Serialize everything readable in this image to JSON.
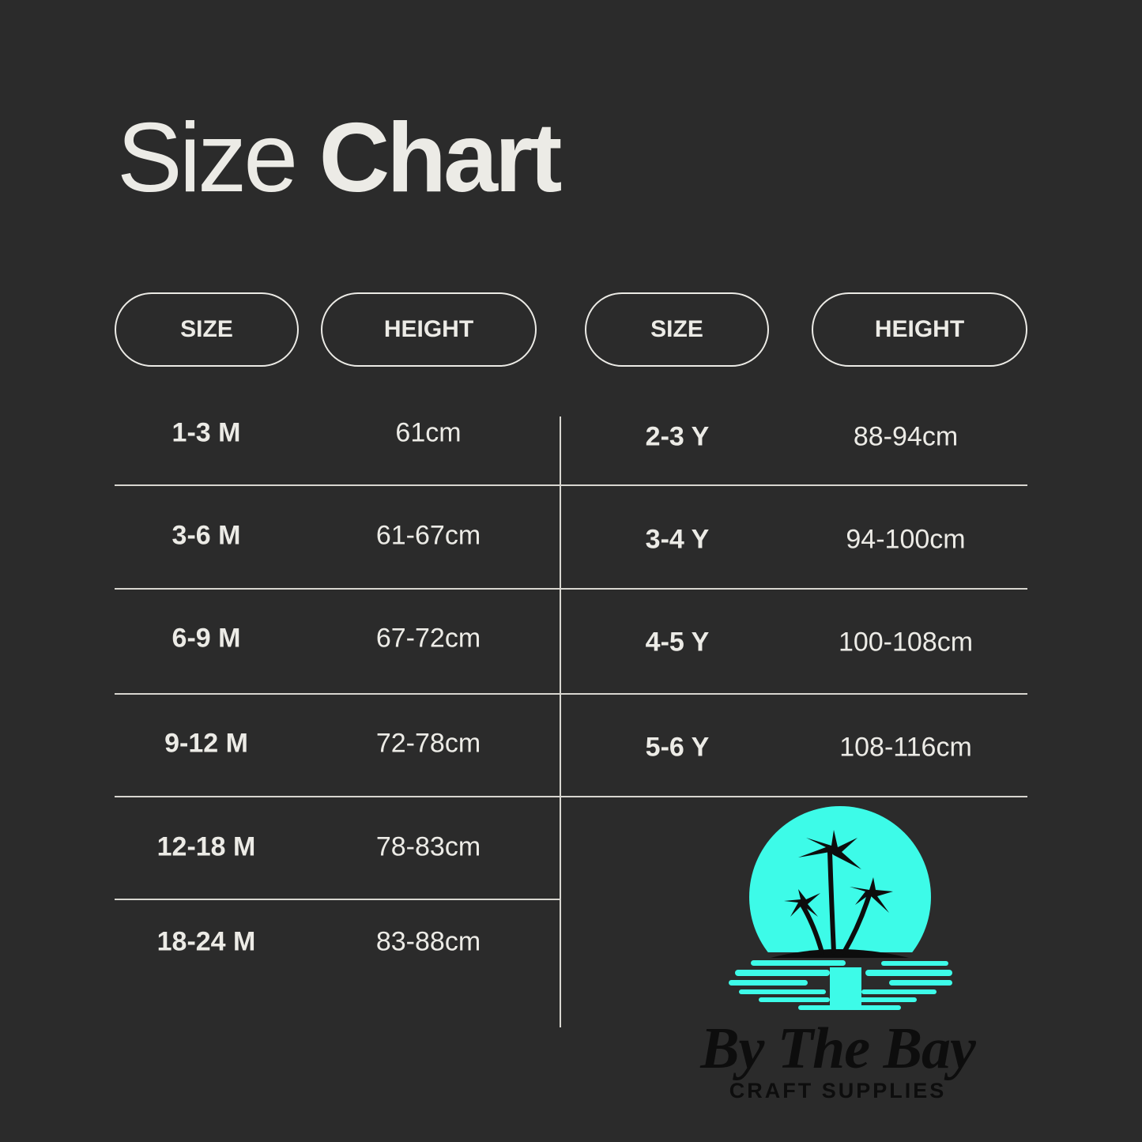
{
  "title": {
    "light": "Size",
    "bold": "Chart"
  },
  "headers": [
    "SIZE",
    "HEIGHT",
    "SIZE",
    "HEIGHT"
  ],
  "left_rows": [
    {
      "size": "1-3 M",
      "height": "61cm"
    },
    {
      "size": "3-6 M",
      "height": "61-67cm"
    },
    {
      "size": "6-9 M",
      "height": "67-72cm"
    },
    {
      "size": "9-12 M",
      "height": "72-78cm"
    },
    {
      "size": "12-18 M",
      "height": "78-83cm"
    },
    {
      "size": "18-24 M",
      "height": "83-88cm"
    }
  ],
  "right_rows": [
    {
      "size": "2-3 Y",
      "height": "88-94cm"
    },
    {
      "size": "3-4 Y",
      "height": "94-100cm"
    },
    {
      "size": "4-5 Y",
      "height": "100-108cm"
    },
    {
      "size": "5-6 Y",
      "height": "108-116cm"
    }
  ],
  "logo": {
    "name": "By The Bay",
    "tagline": "CRAFT SUPPLIES",
    "accent": "#3dfbe8"
  },
  "colors": {
    "background": "#2b2b2b",
    "text": "#ecebe6"
  }
}
